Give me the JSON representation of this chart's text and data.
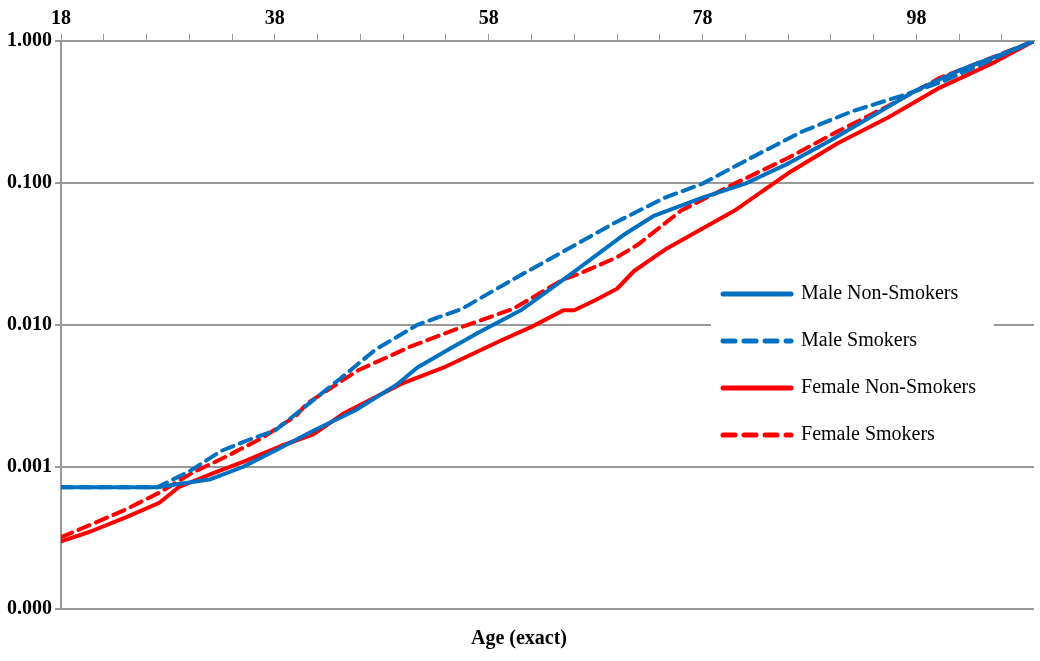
{
  "chart_data": {
    "type": "line",
    "xlabel": "Age (exact)",
    "xlim": [
      18,
      109
    ],
    "xticks": [
      18,
      {
        "value": 22,
        "label": null
      },
      {
        "value": 26,
        "label": null
      },
      {
        "value": 30,
        "label": null
      },
      {
        "value": 34,
        "label": null
      },
      38,
      {
        "value": 42,
        "label": null
      },
      {
        "value": 46,
        "label": null
      },
      {
        "value": 50,
        "label": null
      },
      {
        "value": 54,
        "label": null
      },
      58,
      {
        "value": 62,
        "label": null
      },
      {
        "value": 66,
        "label": null
      },
      {
        "value": 70,
        "label": null
      },
      {
        "value": 74,
        "label": null
      },
      78,
      {
        "value": 82,
        "label": null
      },
      {
        "value": 86,
        "label": null
      },
      {
        "value": 90,
        "label": null
      },
      {
        "value": 94,
        "label": null
      },
      98,
      {
        "value": 102,
        "label": null
      },
      {
        "value": 106,
        "label": null
      }
    ],
    "ylim": [
      0.0001,
      1
    ],
    "yticks": [
      {
        "value": 0.0001,
        "label": "0.000"
      },
      {
        "value": 0.001,
        "label": "0.001"
      },
      {
        "value": 0.01,
        "label": "0.010"
      },
      {
        "value": 0.1,
        "label": "0.100"
      },
      {
        "value": 1,
        "label": "1.000"
      }
    ],
    "log": "y",
    "grid": "y",
    "legend": "right",
    "marker": "none",
    "series": [
      {
        "name": "Male Non-Smokers",
        "color": "#0070c0",
        "line_style": "solid",
        "x": [
          18,
          27,
          32,
          35,
          38,
          41.6,
          45.5,
          49.4,
          51.3,
          54.2,
          57.1,
          61,
          63.8,
          66.7,
          70.6,
          73.5,
          78,
          82,
          86,
          90,
          94,
          98,
          102,
          106,
          109
        ],
        "values": [
          0.00072,
          0.00072,
          0.00082,
          0.001,
          0.0013,
          0.0018,
          0.0025,
          0.0038,
          0.005,
          0.0067,
          0.0089,
          0.0127,
          0.018,
          0.026,
          0.043,
          0.059,
          0.079,
          0.099,
          0.137,
          0.2,
          0.3,
          0.45,
          0.62,
          0.81,
          1
        ]
      },
      {
        "name": "Male Smokers",
        "color": "#0070c0",
        "line_style": "dashed",
        "x": [
          18,
          27,
          30,
          33,
          36,
          38,
          44.3,
          47.4,
          51.3,
          55.5,
          60.3,
          65,
          69.7,
          74.5,
          78,
          82.5,
          87.3,
          92,
          97,
          100.5,
          109
        ],
        "values": [
          0.00072,
          0.00072,
          0.00093,
          0.0013,
          0.0016,
          0.0018,
          0.0043,
          0.0067,
          0.01,
          0.013,
          0.021,
          0.033,
          0.052,
          0.079,
          0.099,
          0.15,
          0.23,
          0.32,
          0.42,
          0.52,
          1
        ]
      },
      {
        "name": "Female Non-Smokers",
        "color": "#ff0000",
        "line_style": "solid",
        "x": [
          18,
          20.7,
          24,
          27.2,
          29,
          32,
          35.2,
          38.5,
          41.6,
          44.5,
          50,
          54,
          58.7,
          62,
          65,
          66,
          68,
          70,
          71.6,
          74.5,
          81,
          86,
          90.6,
          95.4,
          100.2,
          105,
          109
        ],
        "values": [
          0.0003,
          0.00035,
          0.00044,
          0.00056,
          0.00072,
          0.00089,
          0.0011,
          0.0014,
          0.0017,
          0.0024,
          0.0039,
          0.0051,
          0.0075,
          0.0097,
          0.0127,
          0.0127,
          0.015,
          0.018,
          0.024,
          0.034,
          0.064,
          0.117,
          0.19,
          0.29,
          0.47,
          0.69,
          1
        ]
      },
      {
        "name": "Female Smokers",
        "color": "#ff0000",
        "line_style": "dashed",
        "x": [
          18,
          20.7,
          24,
          27.2,
          30.4,
          33.6,
          36.8,
          40,
          41,
          45.8,
          50.6,
          55.5,
          60.3,
          65,
          66.5,
          70,
          72,
          76,
          81,
          86,
          90.6,
          95.4,
          100.2,
          105,
          109
        ],
        "values": [
          0.00032,
          0.00039,
          0.0005,
          0.00066,
          0.00092,
          0.0012,
          0.0016,
          0.0023,
          0.0028,
          0.0048,
          0.007,
          0.0097,
          0.013,
          0.021,
          0.023,
          0.03,
          0.037,
          0.064,
          0.099,
          0.15,
          0.23,
          0.35,
          0.55,
          0.76,
          1
        ]
      }
    ]
  }
}
